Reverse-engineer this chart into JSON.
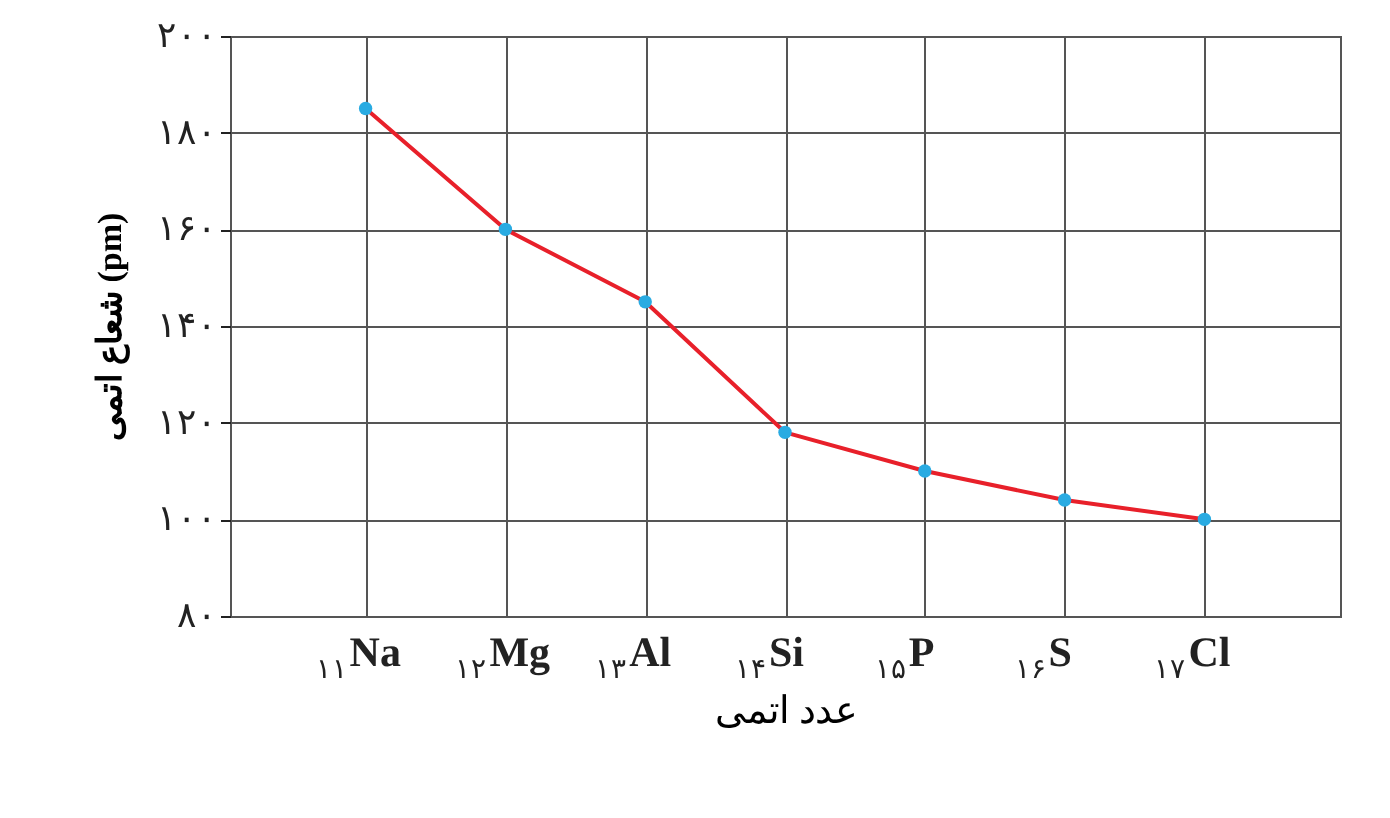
{
  "chart_data": {
    "type": "line",
    "xlabel": "عدد اتمی",
    "ylabel": "شعاع اتمی (pm)",
    "categories": [
      "$_{۱۱}$Na",
      "$_{۱۲}$Mg",
      "$_{۱۳}$Al",
      "$_{۱۴}$Si",
      "$_{۱۵}$P",
      "$_{۱۶}$S",
      "$_{۱۷}$Cl"
    ],
    "series": [
      {
        "color": "#e8202a",
        "values": [
          185,
          160,
          145,
          118,
          110,
          104,
          100
        ]
      }
    ],
    "ylim": [
      80,
      200
    ],
    "yticks": [
      {
        "value": 80,
        "label": "۸۰"
      },
      {
        "value": 100,
        "label": "۱۰۰"
      },
      {
        "value": 120,
        "label": "۱۲۰"
      },
      {
        "value": 140,
        "label": "۱۴۰"
      },
      {
        "value": 160,
        "label": "۱۶۰"
      },
      {
        "value": 180,
        "label": "۱۸۰"
      },
      {
        "value": 200,
        "label": "۲۰۰"
      }
    ],
    "grid": true,
    "marker": "circle",
    "line_style": "solid"
  }
}
